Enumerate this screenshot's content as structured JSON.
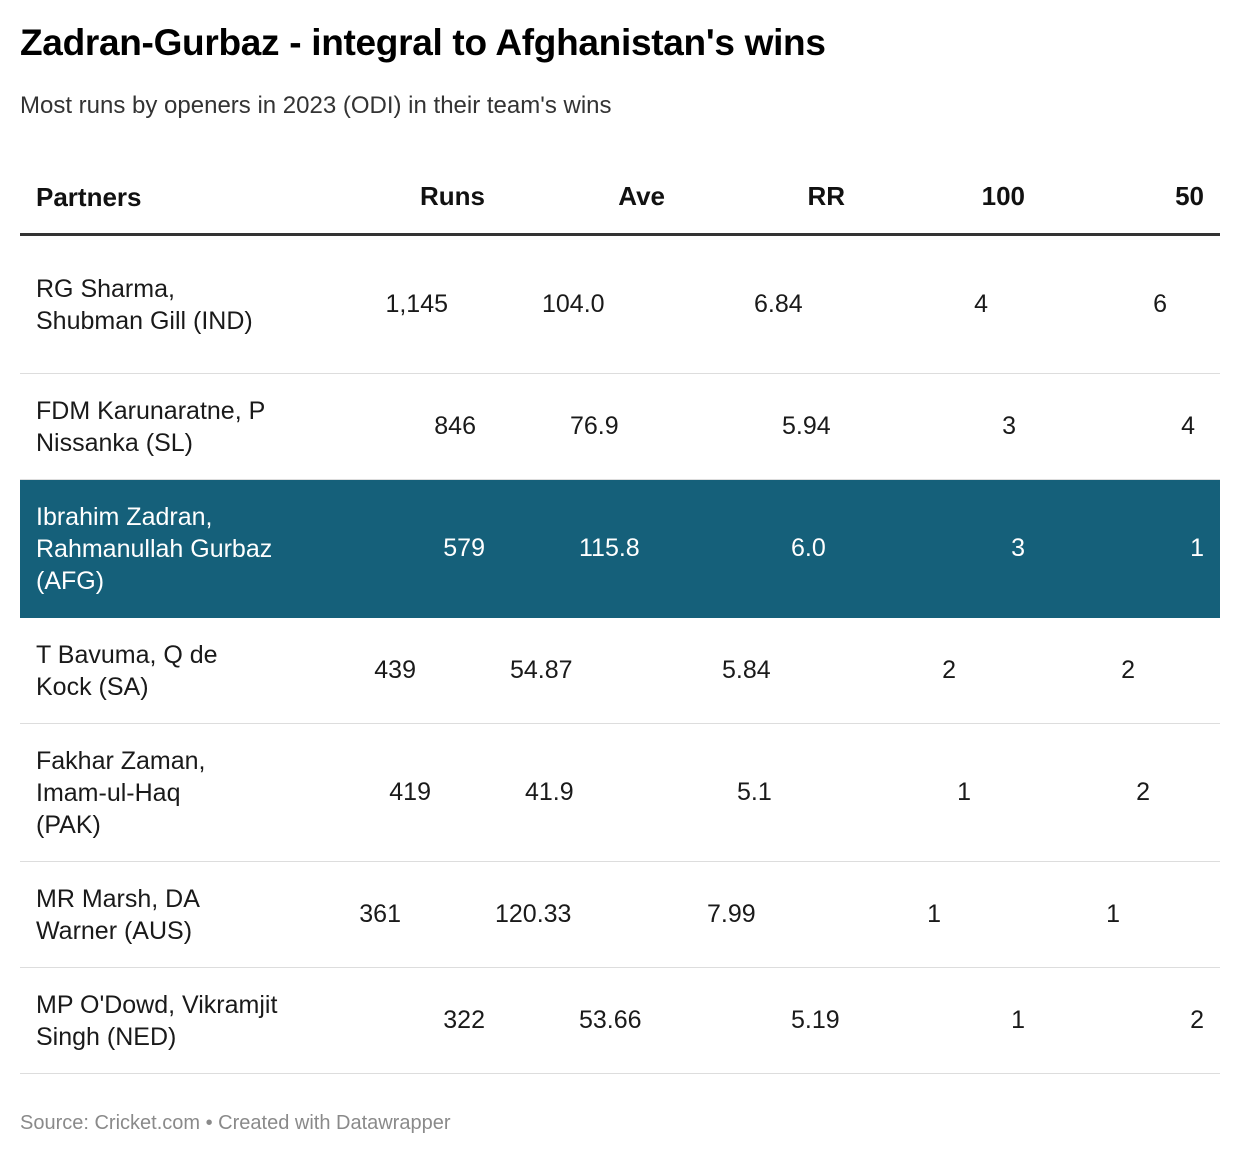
{
  "title": "Zadran-Gurbaz - integral to Afghanistan's wins",
  "subtitle": "Most runs by openers in 2023 (ODI) in their team's wins",
  "footer": "Source: Cricket.com • Created with Datawrapper",
  "colors": {
    "highlight_bg": "#15607a",
    "highlight_text": "#ffffff",
    "header_rule": "#333333",
    "row_rule": "#dddddd"
  },
  "chart_data": {
    "type": "table",
    "columns": [
      "Partners",
      "Runs",
      "Ave",
      "RR",
      "100",
      "50"
    ],
    "highlighted_row": 2,
    "rows": [
      {
        "partners": "RG Sharma, Shubman Gill (IND)",
        "runs": "1,145",
        "ave": "104.0",
        "rr": "6.84",
        "hundreds": "4",
        "fifties": "6"
      },
      {
        "partners": "FDM Karunaratne, P Nissanka (SL)",
        "runs": "846",
        "ave": "76.9",
        "rr": "5.94",
        "hundreds": "3",
        "fifties": "4"
      },
      {
        "partners": "Ibrahim Zadran, Rahmanullah Gurbaz (AFG)",
        "runs": "579",
        "ave": "115.8",
        "rr": "6.0",
        "hundreds": "3",
        "fifties": "1"
      },
      {
        "partners": "T Bavuma, Q de Kock (SA)",
        "runs": "439",
        "ave": "54.87",
        "rr": "5.84",
        "hundreds": "2",
        "fifties": "2"
      },
      {
        "partners": "Fakhar Zaman, Imam-ul-Haq (PAK)",
        "runs": "419",
        "ave": "41.9",
        "rr": "5.1",
        "hundreds": "1",
        "fifties": "2"
      },
      {
        "partners": "MR Marsh, DA Warner (AUS)",
        "runs": "361",
        "ave": "120.33",
        "rr": "7.99",
        "hundreds": "1",
        "fifties": "1"
      },
      {
        "partners": "MP O'Dowd, Vikramjit Singh (NED)",
        "runs": "322",
        "ave": "53.66",
        "rr": "5.19",
        "hundreds": "1",
        "fifties": "2"
      }
    ]
  }
}
